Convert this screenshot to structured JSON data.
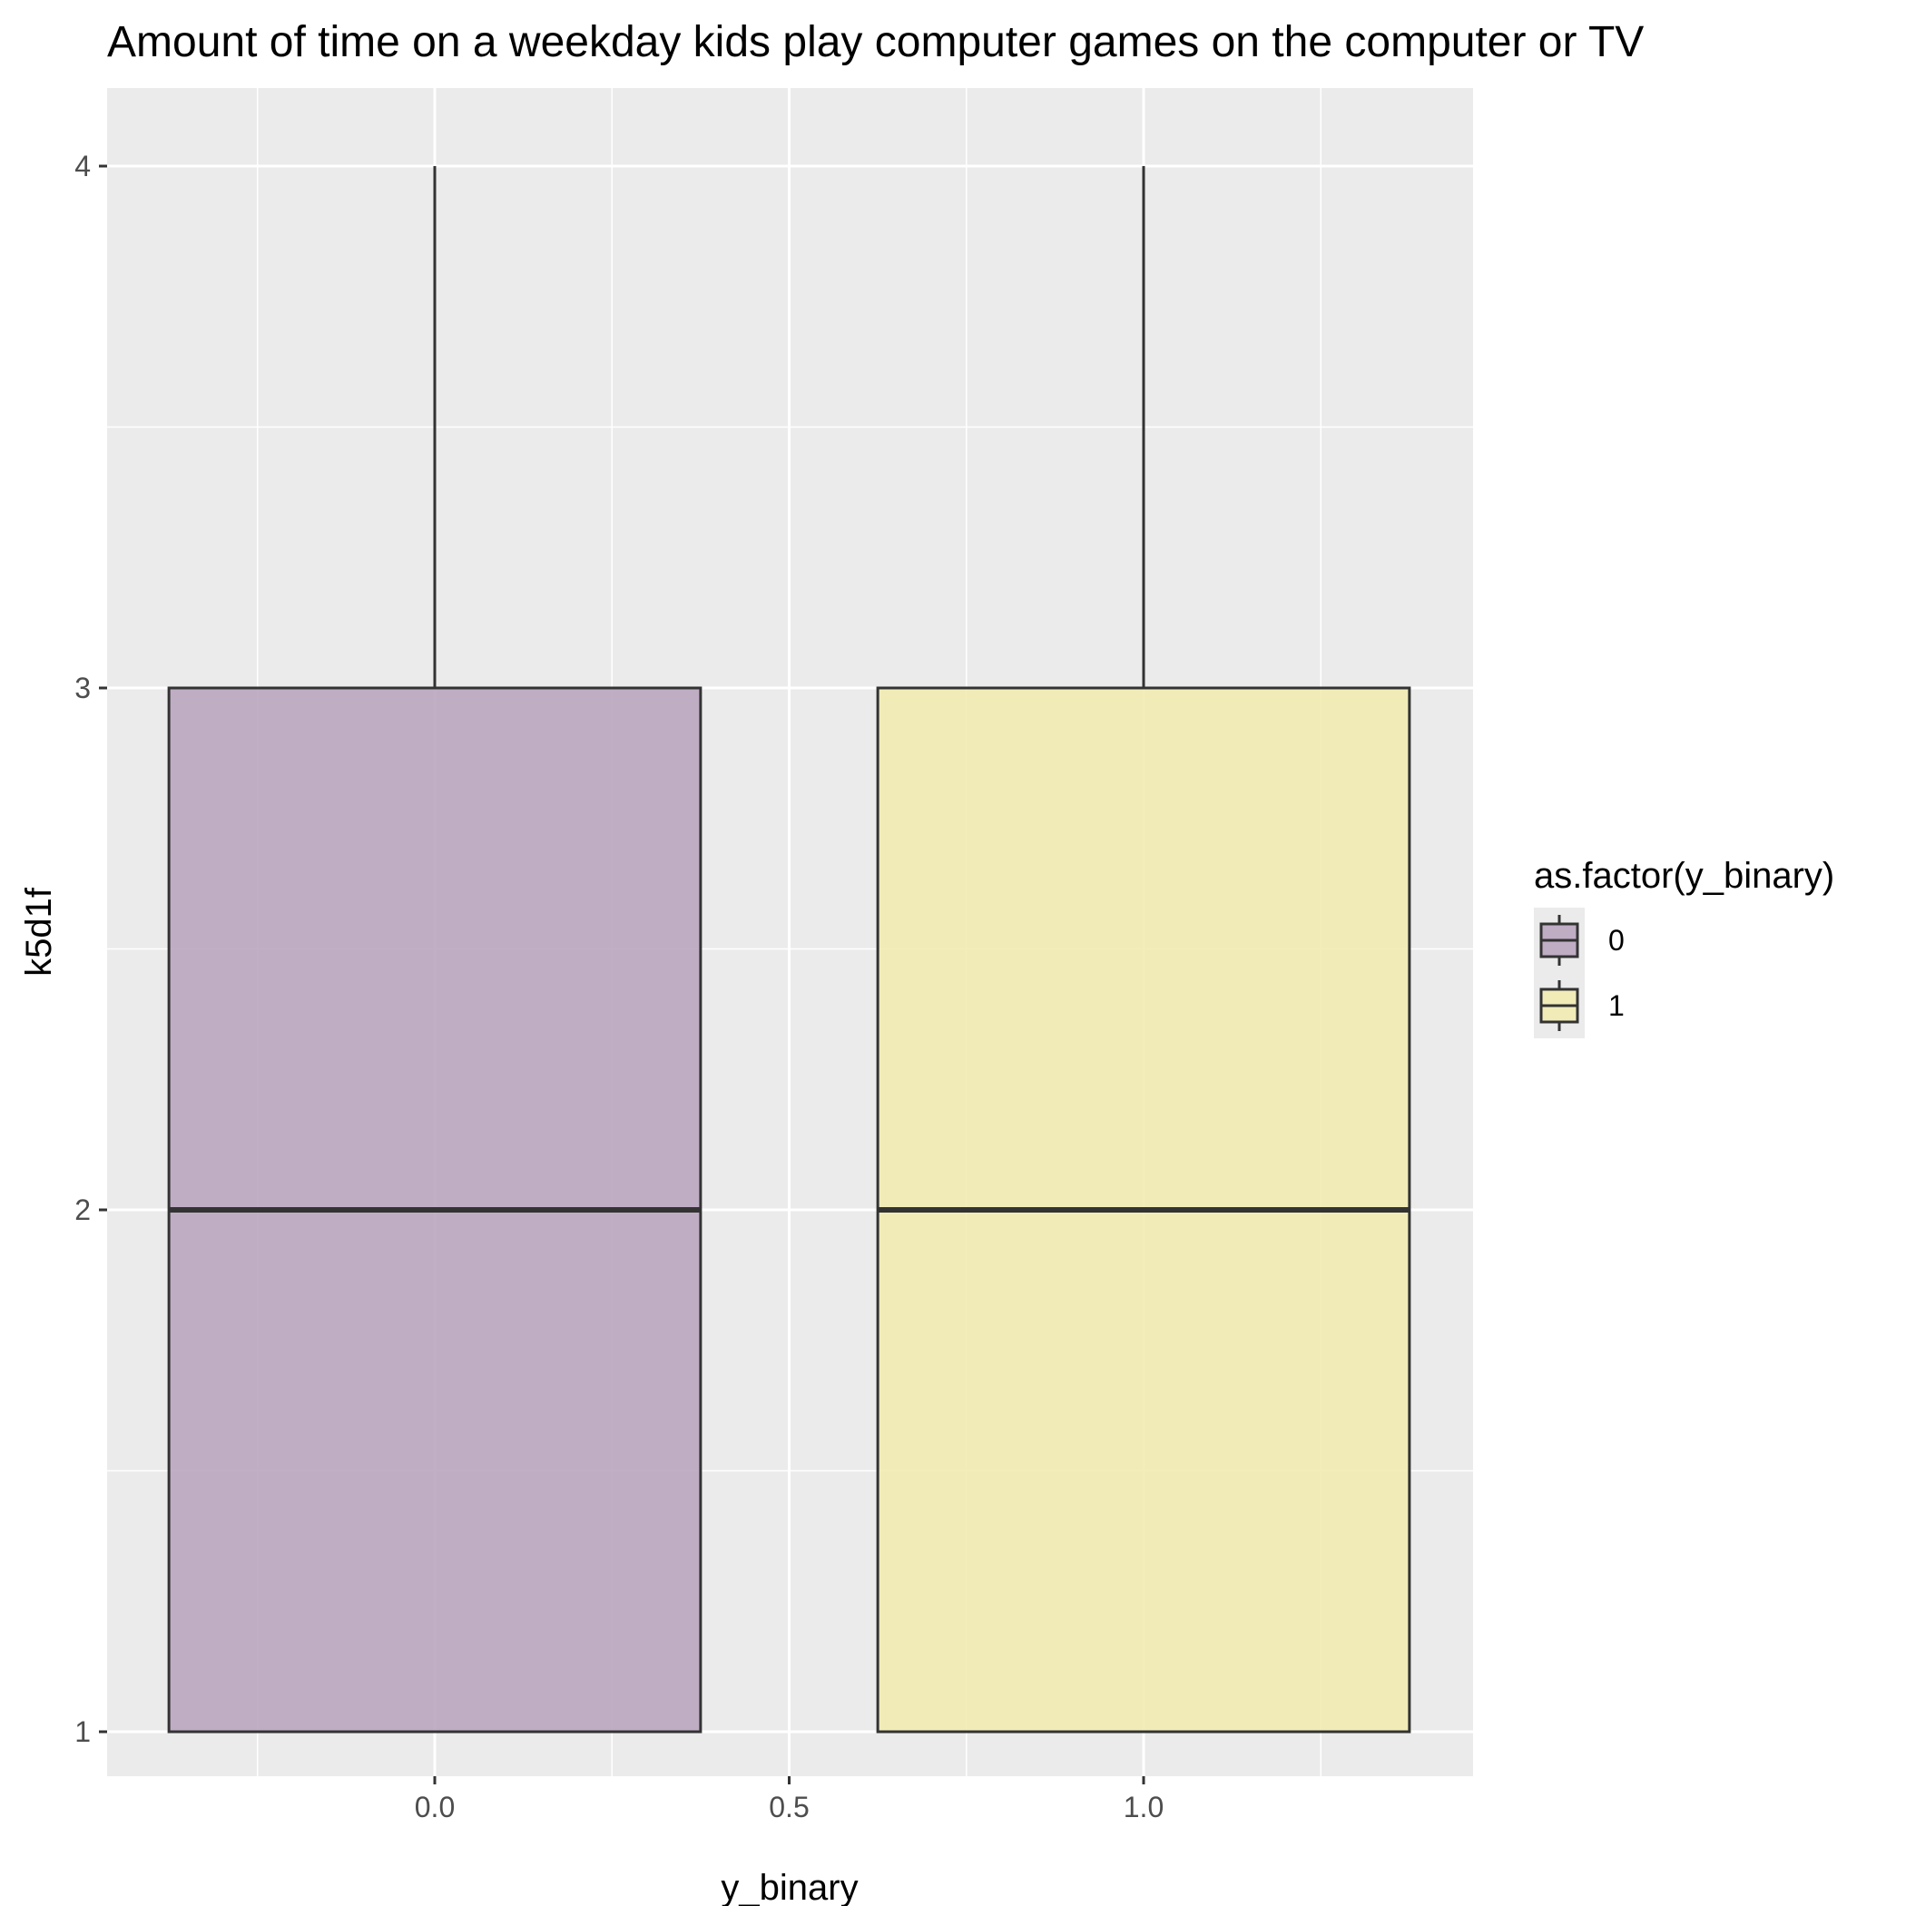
{
  "chart_data": {
    "type": "boxplot",
    "title": "Amount of time on a weekday kids play computer games on the computer or TV",
    "xlabel": "y_binary",
    "ylabel": "k5d1f",
    "x_ticks": [
      "0.0",
      "0.5",
      "1.0"
    ],
    "y_ticks": [
      "1",
      "2",
      "3",
      "4"
    ],
    "xlim": [
      -0.46,
      1.46
    ],
    "ylim": [
      0.85,
      4.15
    ],
    "grid": true,
    "legend": {
      "title": "as.factor(y_binary)",
      "position": "right",
      "entries": [
        "0",
        "1"
      ]
    },
    "series": [
      {
        "name": "0",
        "x": 0.0,
        "width": 0.75,
        "min": 1,
        "q1": 1,
        "median": 2,
        "q3": 3,
        "max": 4,
        "color": "#b8a4be"
      },
      {
        "name": "1",
        "x": 1.0,
        "width": 0.75,
        "min": 1,
        "q1": 1,
        "median": 2,
        "q3": 3,
        "max": 4,
        "color": "#f1eab0"
      }
    ]
  }
}
